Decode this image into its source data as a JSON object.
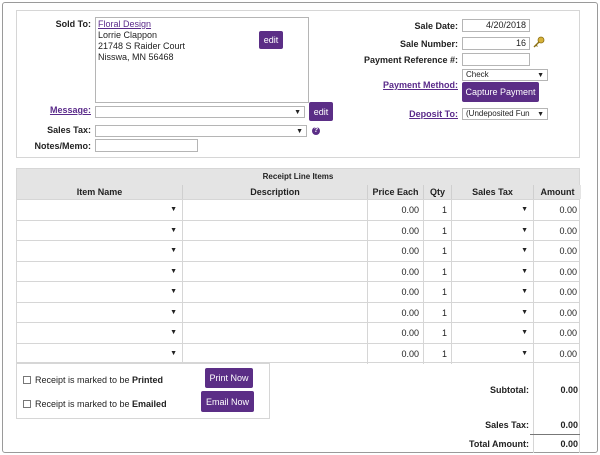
{
  "header": {
    "sold_to_label": "Sold To:",
    "customer_link": "Floral Design",
    "address_lines": [
      "Lorrie Clappon",
      "21748 S Raider Court",
      "Nisswa, MN 56468"
    ],
    "edit_label": "edit",
    "message_label": "Message:",
    "message_value": "",
    "message_edit_label": "edit",
    "sales_tax_label": "Sales Tax:",
    "sales_tax_value": "",
    "help_glyph": "?",
    "notes_label": "Notes/Memo:",
    "notes_value": "",
    "sale_date_label": "Sale Date:",
    "sale_date_value": "4/20/2018",
    "sale_number_label": "Sale Number:",
    "sale_number_value": "16",
    "payment_ref_label": "Payment Reference #:",
    "payment_ref_value": "",
    "payment_method_label": "Payment Method:",
    "payment_method_value": "Check",
    "capture_payment_label": "Capture Payment",
    "deposit_to_label": "Deposit To:",
    "deposit_to_value": "(Undeposited Fun"
  },
  "line_items": {
    "title": "Receipt Line Items",
    "columns": [
      "Item Name",
      "Description",
      "Price Each",
      "Qty",
      "Sales Tax",
      "Amount"
    ],
    "rows": [
      {
        "item": "",
        "description": "",
        "price": "0.00",
        "qty": "1",
        "tax": "",
        "amount": "0.00"
      },
      {
        "item": "",
        "description": "",
        "price": "0.00",
        "qty": "1",
        "tax": "",
        "amount": "0.00"
      },
      {
        "item": "",
        "description": "",
        "price": "0.00",
        "qty": "1",
        "tax": "",
        "amount": "0.00"
      },
      {
        "item": "",
        "description": "",
        "price": "0.00",
        "qty": "1",
        "tax": "",
        "amount": "0.00"
      },
      {
        "item": "",
        "description": "",
        "price": "0.00",
        "qty": "1",
        "tax": "",
        "amount": "0.00"
      },
      {
        "item": "",
        "description": "",
        "price": "0.00",
        "qty": "1",
        "tax": "",
        "amount": "0.00"
      },
      {
        "item": "",
        "description": "",
        "price": "0.00",
        "qty": "1",
        "tax": "",
        "amount": "0.00"
      },
      {
        "item": "",
        "description": "",
        "price": "0.00",
        "qty": "1",
        "tax": "",
        "amount": "0.00"
      }
    ]
  },
  "footer": {
    "printed_prefix": "Receipt is marked to be ",
    "printed_word": "Printed",
    "print_now_label": "Print Now",
    "emailed_prefix": "Receipt is marked to be ",
    "emailed_word": "Emailed",
    "email_now_label": "Email Now",
    "subtotal_label": "Subtotal:",
    "subtotal_value": "0.00",
    "sales_tax_label": "Sales Tax:",
    "sales_tax_value": "0.00",
    "total_label": "Total Amount:",
    "total_value": "0.00"
  },
  "theme": {
    "accent": "#5b2e86",
    "link": "#5a2a8a",
    "header_bg": "#e4e4e4"
  },
  "icons": {
    "dropdown": "caret-down-icon",
    "help": "question-icon",
    "lookup": "key-icon"
  }
}
